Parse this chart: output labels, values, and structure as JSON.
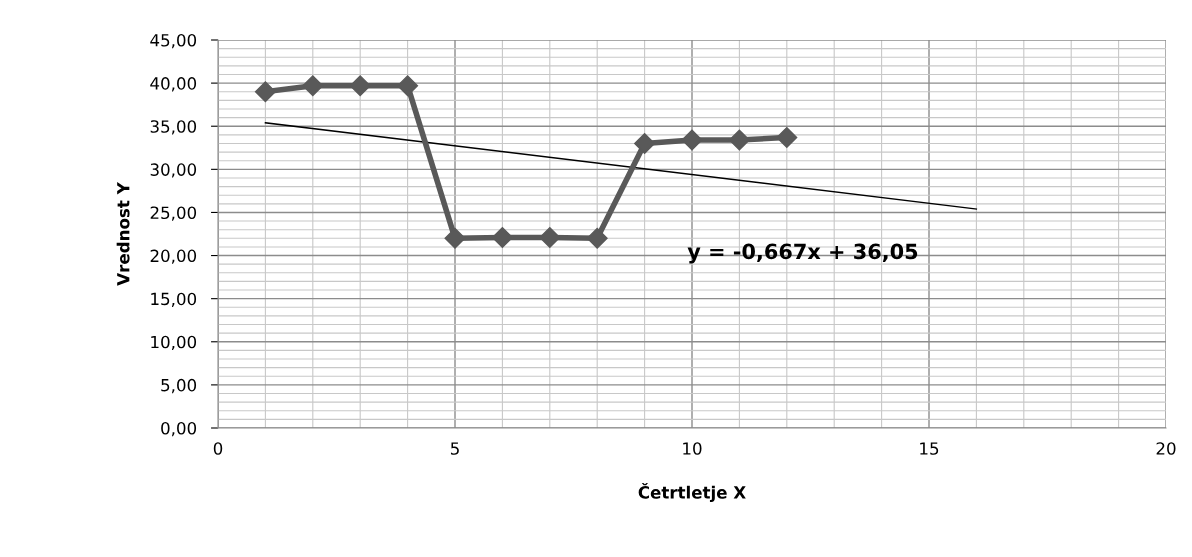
{
  "chart_data": {
    "type": "line",
    "xlabel": "Četrtletje X",
    "ylabel": "Vrednost Y",
    "series": [
      {
        "color": "#595959",
        "marker": "diamond",
        "x": [
          1,
          2,
          3,
          4,
          5,
          6,
          7,
          8,
          9,
          10,
          11,
          12
        ],
        "values": [
          39.0,
          39.7,
          39.7,
          39.7,
          22.0,
          22.1,
          22.1,
          22.0,
          33.0,
          33.4,
          33.4,
          33.7
        ]
      },
      {
        "color": "#000000",
        "marker": "none",
        "x": [
          1,
          16
        ],
        "values": [
          35.4,
          25.4
        ]
      }
    ],
    "annotations": [
      "y = -0,667x + 36,05"
    ],
    "xlim": [
      0,
      20
    ],
    "xticks": [
      0,
      5,
      10,
      15,
      20
    ],
    "ylim": [
      0,
      45
    ],
    "yticks": [
      {
        "value": 0,
        "label": "0,00"
      },
      {
        "value": 5,
        "label": "5,00"
      },
      {
        "value": 10,
        "label": "10,00"
      },
      {
        "value": 15,
        "label": "15,00"
      },
      {
        "value": 20,
        "label": "20,00"
      },
      {
        "value": 25,
        "label": "25,00"
      },
      {
        "value": 30,
        "label": "30,00"
      },
      {
        "value": 35,
        "label": "35,00"
      },
      {
        "value": 40,
        "label": "40,00"
      },
      {
        "value": 45,
        "label": "45,00"
      }
    ],
    "grid": true,
    "legend": false
  }
}
